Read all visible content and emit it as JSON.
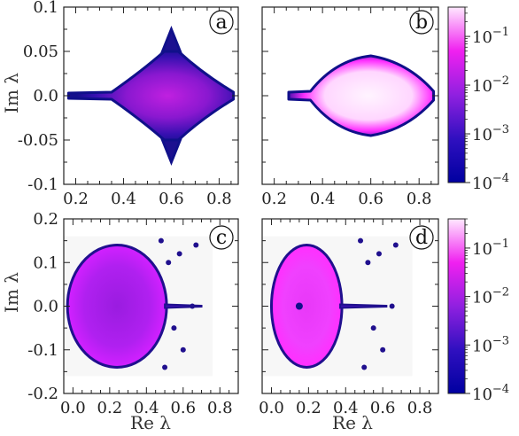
{
  "chart_data": [
    {
      "type": "heatmap",
      "panel": "a",
      "xlabel": "",
      "ylabel": "Im λ",
      "xlim": [
        0.15,
        0.88
      ],
      "ylim": [
        -0.1,
        0.1
      ],
      "xticks": [
        "0.2",
        "0.4",
        "0.6",
        "0.8"
      ],
      "yticks": [
        "-0.1",
        "-0.05",
        "0.0",
        "0.05",
        "0.1"
      ],
      "region": {
        "shape": "diamond",
        "x_min": 0.17,
        "x_max": 0.86,
        "x_peak": 0.6,
        "half_height": 0.05,
        "tail_x": 0.35,
        "intensity": "medium",
        "spike_to": [
          0.075,
          -0.075
        ]
      }
    },
    {
      "type": "heatmap",
      "panel": "b",
      "xlabel": "",
      "ylabel": "",
      "xlim": [
        0.15,
        0.88
      ],
      "ylim": [
        -0.1,
        0.1
      ],
      "xticks": [
        "0.2",
        "0.4",
        "0.6",
        "0.8"
      ],
      "yticks": [],
      "region": {
        "shape": "lens",
        "x_min": 0.26,
        "x_max": 0.86,
        "x_peak": 0.6,
        "half_height": 0.045,
        "tail_x": 0.35,
        "intensity": "high"
      },
      "colorbar": {
        "scale": "log",
        "range": [
          0.0001,
          0.4
        ],
        "ticks": [
          "10^{-4}",
          "10^{-3}",
          "10^{-2}",
          "10^{-1}"
        ]
      }
    },
    {
      "type": "heatmap",
      "panel": "c",
      "xlabel": "Re λ",
      "ylabel": "Im λ",
      "xlim": [
        -0.05,
        0.9
      ],
      "ylim": [
        -0.2,
        0.2
      ],
      "xticks": [
        "0.0",
        "0.2",
        "0.4",
        "0.6",
        "0.8"
      ],
      "yticks": [
        "-0.2",
        "-0.1",
        "0.0",
        "0.1",
        "0.2"
      ],
      "region": {
        "shape": "ellipse",
        "cx": 0.24,
        "cy": 0.0,
        "rx": 0.27,
        "ry": 0.14,
        "tail_to": 0.7,
        "intensity": "medium",
        "bg_y": [
          -0.16,
          0.16
        ]
      }
    },
    {
      "type": "heatmap",
      "panel": "d",
      "xlabel": "Re λ",
      "ylabel": "",
      "xlim": [
        -0.05,
        0.9
      ],
      "ylim": [
        -0.2,
        0.2
      ],
      "xticks": [
        "0.0",
        "0.2",
        "0.4",
        "0.6",
        "0.8"
      ],
      "yticks": [],
      "region": {
        "shape": "ellipse",
        "cx": 0.19,
        "cy": 0.0,
        "rx": 0.19,
        "ry": 0.14,
        "tail_to": 0.62,
        "intensity": "high",
        "hole": [
          0.15,
          0.0
        ],
        "bg_y": [
          -0.16,
          0.16
        ]
      },
      "colorbar": {
        "scale": "log",
        "range": [
          0.0001,
          0.4
        ],
        "ticks": [
          "10^{-4}",
          "10^{-3}",
          "10^{-2}",
          "10^{-1}"
        ]
      }
    }
  ],
  "colors": {
    "low": "#0b0b8a",
    "mid_low": "#5a14b8",
    "mid": "#a020d8",
    "high": "#ff20ff",
    "peak": "#fff5ff",
    "background": "#f7f7f7"
  }
}
